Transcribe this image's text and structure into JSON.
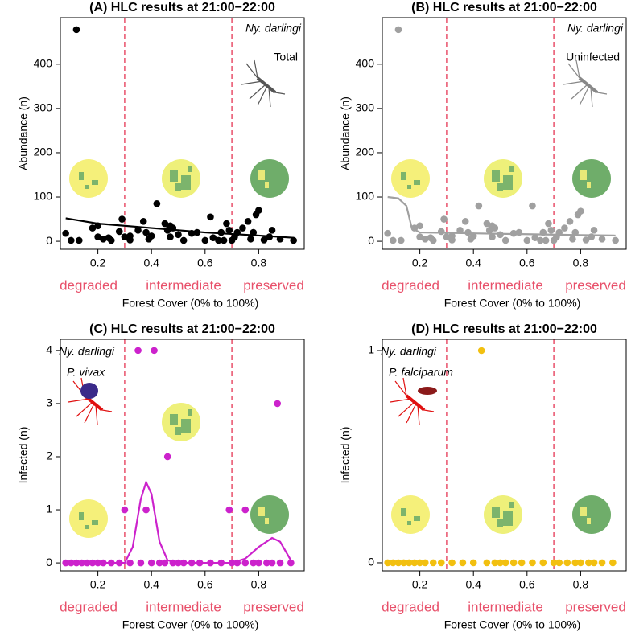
{
  "chart_data": [
    {
      "type": "scatter",
      "title": "(A) HLC results at 21:00−22:00",
      "x_label": "Forest Cover (0% to 100%)",
      "y_label": "Abundance (n)",
      "species": "Ny. darlingi",
      "subset": "Total",
      "categories": [
        "degraded",
        "intermediate",
        "preserved"
      ],
      "category_color": "#e8506a",
      "thresholds": [
        0.3,
        0.7
      ],
      "threshold_color": "#e8506a",
      "xlim": [
        0.06,
        0.97
      ],
      "ylim": [
        -18,
        505
      ],
      "xticks": [
        0.2,
        0.4,
        0.6,
        0.8
      ],
      "yticks": [
        0,
        100,
        200,
        300,
        400
      ],
      "points": {
        "color": "#000000",
        "x": [
          0.12,
          0.08,
          0.1,
          0.13,
          0.18,
          0.2,
          0.2,
          0.22,
          0.24,
          0.25,
          0.28,
          0.29,
          0.3,
          0.32,
          0.32,
          0.35,
          0.37,
          0.38,
          0.39,
          0.4,
          0.42,
          0.45,
          0.46,
          0.47,
          0.47,
          0.48,
          0.5,
          0.52,
          0.55,
          0.57,
          0.6,
          0.62,
          0.63,
          0.65,
          0.66,
          0.67,
          0.68,
          0.69,
          0.7,
          0.71,
          0.72,
          0.74,
          0.76,
          0.77,
          0.78,
          0.79,
          0.8,
          0.82,
          0.84,
          0.85,
          0.88,
          0.93
        ],
        "values": [
          478,
          18,
          2,
          2,
          30,
          35,
          10,
          5,
          8,
          2,
          22,
          50,
          10,
          12,
          3,
          25,
          45,
          20,
          5,
          12,
          85,
          40,
          25,
          35,
          10,
          30,
          15,
          2,
          18,
          20,
          2,
          55,
          8,
          2,
          20,
          2,
          40,
          25,
          2,
          10,
          20,
          30,
          45,
          5,
          20,
          60,
          70,
          3,
          10,
          25,
          5,
          2
        ]
      },
      "curve": {
        "color": "#000000",
        "x": [
          0.08,
          0.2,
          0.4,
          0.6,
          0.8,
          0.93
        ],
        "values": [
          52,
          40,
          30,
          20,
          13,
          8
        ]
      }
    },
    {
      "type": "scatter",
      "title": "(B) HLC results at 21:00−22:00",
      "x_label": "Forest Cover (0% to 100%)",
      "y_label": "Abundance (n)",
      "species": "Ny. darlingi",
      "subset": "Uninfected",
      "categories": [
        "degraded",
        "intermediate",
        "preserved"
      ],
      "category_color": "#e8506a",
      "thresholds": [
        0.3,
        0.7
      ],
      "threshold_color": "#e8506a",
      "xlim": [
        0.06,
        0.97
      ],
      "ylim": [
        -18,
        505
      ],
      "xticks": [
        0.2,
        0.4,
        0.6,
        0.8
      ],
      "yticks": [
        0,
        100,
        200,
        300,
        400
      ],
      "points": {
        "color": "#a0a0a0",
        "x": [
          0.12,
          0.08,
          0.1,
          0.13,
          0.18,
          0.2,
          0.2,
          0.22,
          0.24,
          0.25,
          0.28,
          0.29,
          0.3,
          0.32,
          0.32,
          0.35,
          0.37,
          0.38,
          0.39,
          0.4,
          0.42,
          0.45,
          0.46,
          0.47,
          0.47,
          0.48,
          0.5,
          0.52,
          0.55,
          0.57,
          0.6,
          0.62,
          0.63,
          0.65,
          0.66,
          0.67,
          0.68,
          0.69,
          0.7,
          0.71,
          0.72,
          0.74,
          0.76,
          0.77,
          0.78,
          0.79,
          0.8,
          0.82,
          0.84,
          0.85,
          0.88,
          0.93
        ],
        "values": [
          478,
          18,
          2,
          2,
          30,
          35,
          10,
          5,
          8,
          2,
          22,
          50,
          10,
          12,
          3,
          25,
          45,
          20,
          5,
          12,
          80,
          40,
          25,
          35,
          10,
          30,
          15,
          2,
          18,
          20,
          2,
          80,
          8,
          2,
          20,
          2,
          40,
          25,
          2,
          10,
          20,
          30,
          45,
          5,
          20,
          60,
          68,
          3,
          10,
          25,
          5,
          2
        ]
      },
      "curve": {
        "color": "#a0a0a0",
        "x": [
          0.08,
          0.12,
          0.15,
          0.17,
          0.2,
          0.4,
          0.6,
          0.8,
          0.93
        ],
        "values": [
          100,
          97,
          80,
          30,
          20,
          18,
          16,
          14,
          13
        ]
      }
    },
    {
      "type": "scatter",
      "title": "(C) HLC results at 21:00−22:00",
      "x_label": "Forest Cover (0% to 100%)",
      "y_label": "Infected (n)",
      "species": "Ny. darlingi",
      "subset": "P. vivax",
      "categories": [
        "degraded",
        "intermediate",
        "preserved"
      ],
      "category_color": "#e8506a",
      "thresholds": [
        0.3,
        0.7
      ],
      "threshold_color": "#e8506a",
      "xlim": [
        0.06,
        0.97
      ],
      "ylim": [
        -0.15,
        4.21
      ],
      "xticks": [
        0.2,
        0.4,
        0.6,
        0.8
      ],
      "yticks": [
        0,
        1,
        2,
        3,
        4
      ],
      "points": {
        "color": "#cc22cc",
        "x": [
          0.35,
          0.41,
          0.3,
          0.38,
          0.46,
          0.69,
          0.75,
          0.87,
          0.08,
          0.1,
          0.12,
          0.14,
          0.16,
          0.18,
          0.2,
          0.22,
          0.25,
          0.28,
          0.32,
          0.36,
          0.4,
          0.43,
          0.45,
          0.48,
          0.5,
          0.52,
          0.55,
          0.58,
          0.62,
          0.66,
          0.7,
          0.72,
          0.75,
          0.78,
          0.8,
          0.83,
          0.85,
          0.88,
          0.92
        ],
        "values": [
          4,
          4,
          1,
          1,
          2,
          1,
          1,
          3,
          0,
          0,
          0,
          0,
          0,
          0,
          0,
          0,
          0,
          0,
          0,
          0,
          0,
          0,
          0,
          0,
          0,
          0,
          0,
          0,
          0,
          0,
          0,
          0,
          0,
          0,
          0,
          0,
          0,
          0,
          0
        ]
      },
      "curve": {
        "color": "#cc22cc",
        "x": [
          0.08,
          0.3,
          0.33,
          0.36,
          0.38,
          0.4,
          0.43,
          0.46,
          0.5,
          0.7,
          0.75,
          0.8,
          0.85,
          0.88,
          0.92
        ],
        "values": [
          0,
          0,
          0.3,
          1.2,
          1.52,
          1.3,
          0.4,
          0.05,
          0,
          0,
          0.08,
          0.3,
          0.47,
          0.4,
          0.05
        ]
      }
    },
    {
      "type": "scatter",
      "title": "(D) HLC results at 21:00−22:00",
      "x_label": "Forest Cover (0% to 100%)",
      "y_label": "Infected (n)",
      "species": "Ny. darlingi",
      "subset": "P. falciparum",
      "categories": [
        "degraded",
        "intermediate",
        "preserved"
      ],
      "category_color": "#e8506a",
      "thresholds": [
        0.3,
        0.7
      ],
      "threshold_color": "#e8506a",
      "xlim": [
        0.06,
        0.97
      ],
      "ylim": [
        -0.038,
        1.053
      ],
      "xticks": [
        0.2,
        0.4,
        0.6,
        0.8
      ],
      "yticks": [
        0,
        1
      ],
      "points": {
        "color": "#f2c010",
        "x": [
          0.43,
          0.08,
          0.1,
          0.12,
          0.14,
          0.16,
          0.18,
          0.2,
          0.22,
          0.25,
          0.28,
          0.32,
          0.36,
          0.4,
          0.45,
          0.48,
          0.5,
          0.52,
          0.55,
          0.58,
          0.62,
          0.66,
          0.7,
          0.72,
          0.75,
          0.78,
          0.8,
          0.83,
          0.85,
          0.88,
          0.92
        ],
        "values": [
          1,
          0,
          0,
          0,
          0,
          0,
          0,
          0,
          0,
          0,
          0,
          0,
          0,
          0,
          0,
          0,
          0,
          0,
          0,
          0,
          0,
          0,
          0,
          0,
          0,
          0,
          0,
          0,
          0,
          0,
          0
        ]
      }
    }
  ]
}
